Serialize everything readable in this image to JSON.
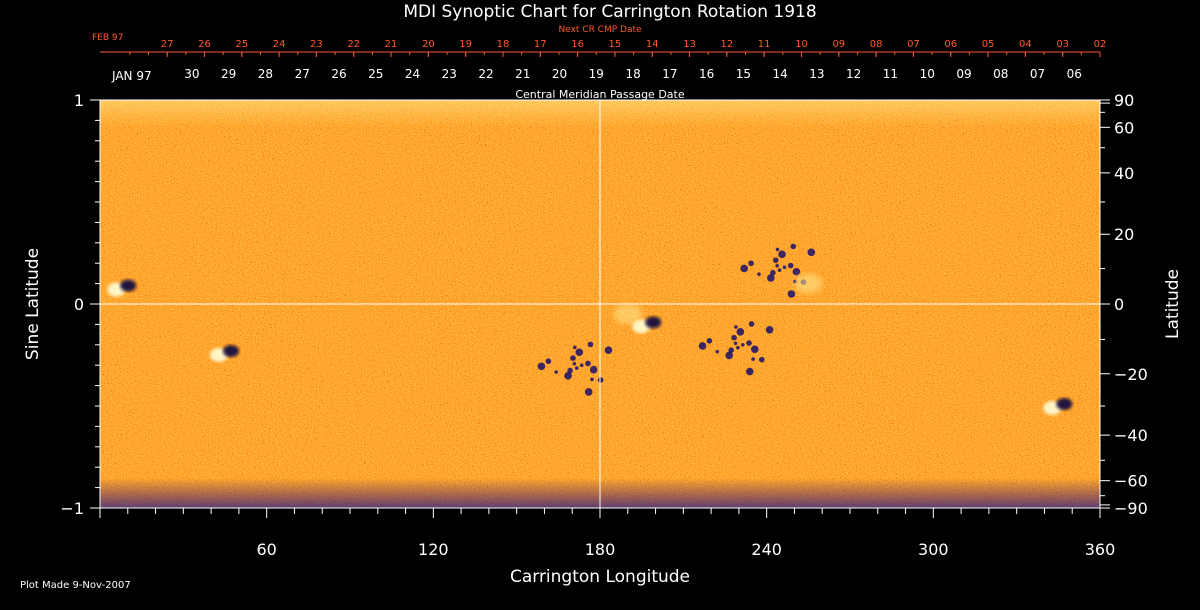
{
  "chart_data": {
    "type": "heatmap",
    "title": "MDI Synoptic Chart for Carrington Rotation 1918",
    "xlabel": "Carrington Longitude",
    "ylabel_left": "Sine Latitude",
    "ylabel_right": "Latitude",
    "xlim": [
      0,
      360
    ],
    "ylim": [
      -1,
      1
    ],
    "x_ticks": [
      "60",
      "120",
      "180",
      "240",
      "300",
      "360"
    ],
    "y_ticks_left": [
      "1",
      "0",
      "−1"
    ],
    "y_ticks_right": [
      "90",
      "60",
      "40",
      "20",
      "0",
      "−20",
      "−40",
      "−60",
      "−90"
    ],
    "top_axis_title": "Central Meridian Passage Date",
    "top_axis_month": "JAN 97",
    "top_axis_dates": [
      "30",
      "29",
      "28",
      "27",
      "26",
      "25",
      "24",
      "23",
      "22",
      "21",
      "20",
      "19",
      "18",
      "17",
      "16",
      "15",
      "14",
      "13",
      "12",
      "11",
      "10",
      "09",
      "08",
      "07",
      "06"
    ],
    "next_cr_title": "Next CR CMP Date",
    "next_cr_month": "FEB 97",
    "next_cr_dates": [
      "27",
      "26",
      "25",
      "24",
      "23",
      "22",
      "21",
      "20",
      "19",
      "18",
      "17",
      "16",
      "15",
      "14",
      "13",
      "12",
      "11",
      "10",
      "09",
      "08",
      "07",
      "06",
      "05",
      "04",
      "03",
      "02"
    ],
    "colormap": [
      "#000020",
      "#1a1060",
      "#7a0a00",
      "#d42800",
      "#ff5a10",
      "#ff9020",
      "#ffd060",
      "#ffffe0"
    ],
    "colors": {
      "background": "#000000",
      "axis": "#ffffff",
      "secondary_axis": "#ff5a2a"
    },
    "grid": "center-lines",
    "features": [
      {
        "name": "active region",
        "lon": 197,
        "lat": -0.1,
        "polarity": "mixed"
      },
      {
        "name": "active region",
        "lon": 345,
        "lat": -0.5,
        "polarity": "mixed"
      },
      {
        "name": "active region",
        "lon": 45,
        "lat": -0.24,
        "polarity": "mixed"
      },
      {
        "name": "active region",
        "lon": 8,
        "lat": 0.08,
        "polarity": "mixed"
      },
      {
        "name": "negative cluster",
        "lon": 245,
        "lat": 0.18,
        "polarity": "negative"
      },
      {
        "name": "negative cluster",
        "lon": 230,
        "lat": -0.2,
        "polarity": "negative"
      },
      {
        "name": "negative cluster",
        "lon": 172,
        "lat": -0.3,
        "polarity": "negative"
      },
      {
        "name": "positive cluster",
        "lon": 190,
        "lat": -0.05,
        "polarity": "positive"
      },
      {
        "name": "positive cluster",
        "lon": 255,
        "lat": 0.1,
        "polarity": "positive"
      }
    ]
  },
  "footer": {
    "plot_made": "Plot Made  9-Nov-2007"
  }
}
